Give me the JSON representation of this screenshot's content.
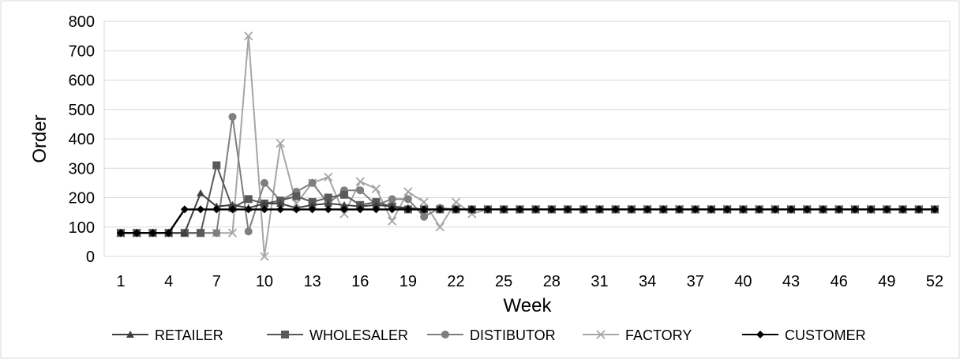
{
  "chart_data": {
    "type": "line",
    "title": "",
    "xlabel": "Week",
    "ylabel": "Order",
    "ylim": [
      0,
      800
    ],
    "yticks": [
      "0",
      "100",
      "200",
      "300",
      "400",
      "500",
      "600",
      "700",
      "800"
    ],
    "xlim": [
      1,
      52
    ],
    "xticks": [
      "1",
      "4",
      "7",
      "10",
      "13",
      "16",
      "19",
      "22",
      "25",
      "28",
      "31",
      "34",
      "37",
      "40",
      "43",
      "46",
      "49",
      "52"
    ],
    "grid": "horizontal",
    "legend_position": "bottom",
    "series": [
      {
        "name": "RETAILER",
        "marker": "triangle",
        "color": "#404040",
        "values": [
          80,
          80,
          80,
          80,
          80,
          215,
          170,
          175,
          165,
          180,
          180,
          165,
          175,
          180,
          175,
          170,
          175,
          170,
          165,
          160,
          160,
          160,
          160,
          160,
          160,
          160,
          160,
          160,
          160,
          160,
          160,
          160,
          160,
          160,
          160,
          160,
          160,
          160,
          160,
          160,
          160,
          160,
          160,
          160,
          160,
          160,
          160,
          160,
          160,
          160,
          160,
          160
        ]
      },
      {
        "name": "WHOLESALER",
        "marker": "square",
        "color": "#595959",
        "values": [
          80,
          80,
          80,
          80,
          80,
          80,
          310,
          165,
          195,
          180,
          190,
          205,
          185,
          200,
          210,
          175,
          185,
          170,
          160,
          160,
          160,
          160,
          160,
          160,
          160,
          160,
          160,
          160,
          160,
          160,
          160,
          160,
          160,
          160,
          160,
          160,
          160,
          160,
          160,
          160,
          160,
          160,
          160,
          160,
          160,
          160,
          160,
          160,
          160,
          160,
          160,
          160
        ]
      },
      {
        "name": "DISTIBUTOR",
        "marker": "circle",
        "color": "#7f7f7f",
        "values": [
          80,
          80,
          80,
          80,
          80,
          80,
          80,
          475,
          85,
          250,
          190,
          220,
          250,
          180,
          225,
          225,
          175,
          195,
          195,
          135,
          165,
          160,
          160,
          160,
          160,
          160,
          160,
          160,
          160,
          160,
          160,
          160,
          160,
          160,
          160,
          160,
          160,
          160,
          160,
          160,
          160,
          160,
          160,
          160,
          160,
          160,
          160,
          160,
          160,
          160,
          160,
          160
        ]
      },
      {
        "name": "FACTORY",
        "marker": "x",
        "color": "#a6a6a6",
        "values": [
          80,
          80,
          80,
          80,
          80,
          80,
          80,
          80,
          750,
          0,
          385,
          180,
          250,
          270,
          145,
          255,
          230,
          120,
          220,
          185,
          100,
          185,
          145,
          160,
          160,
          160,
          160,
          160,
          160,
          160,
          160,
          160,
          160,
          160,
          160,
          160,
          160,
          160,
          160,
          160,
          160,
          160,
          160,
          160,
          160,
          160,
          160,
          160,
          160,
          160,
          160,
          160
        ]
      },
      {
        "name": "CUSTOMER",
        "marker": "diamond",
        "color": "#000000",
        "values": [
          80,
          80,
          80,
          80,
          160,
          160,
          160,
          160,
          160,
          160,
          160,
          160,
          160,
          160,
          160,
          160,
          160,
          160,
          160,
          160,
          160,
          160,
          160,
          160,
          160,
          160,
          160,
          160,
          160,
          160,
          160,
          160,
          160,
          160,
          160,
          160,
          160,
          160,
          160,
          160,
          160,
          160,
          160,
          160,
          160,
          160,
          160,
          160,
          160,
          160,
          160,
          160
        ]
      }
    ]
  }
}
